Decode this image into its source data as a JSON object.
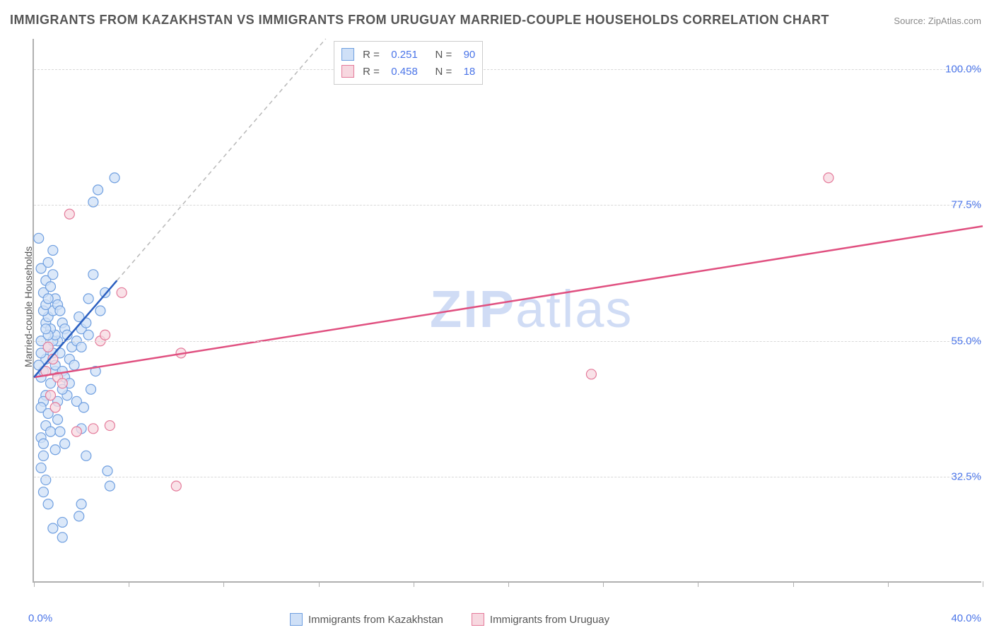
{
  "title": "IMMIGRANTS FROM KAZAKHSTAN VS IMMIGRANTS FROM URUGUAY MARRIED-COUPLE HOUSEHOLDS CORRELATION CHART",
  "source_label": "Source:",
  "source_name": "ZipAtlas.com",
  "watermark": "ZIPatlas",
  "chart": {
    "type": "scatter",
    "ylabel": "Married-couple Households",
    "xlim": [
      0,
      40
    ],
    "ylim": [
      15,
      105
    ],
    "x_ticks": [
      0,
      4,
      8,
      12,
      16,
      20,
      24,
      28,
      32,
      36,
      40
    ],
    "x_tick_labels": {
      "0": "0.0%",
      "40": "40.0%"
    },
    "y_grid": [
      32.5,
      55.0,
      77.5,
      100.0
    ],
    "y_grid_labels": [
      "32.5%",
      "55.0%",
      "77.5%",
      "100.0%"
    ],
    "background_color": "#ffffff",
    "grid_color": "#d8d8d8",
    "axis_color": "#b0b0b0",
    "tick_label_color": "#4a74e8",
    "series": [
      {
        "name": "Immigrants from Kazakhstan",
        "marker_fill": "#cfe0f7",
        "marker_stroke": "#6f9fe0",
        "marker_radius": 7,
        "line_color": "#2b5fc0",
        "dash_color": "#b8b8b8",
        "R": "0.251",
        "N": "90",
        "regression": {
          "x1": 0,
          "y1": 49,
          "x2": 3.5,
          "y2": 65
        },
        "dash_extend": {
          "x1": 3.5,
          "y1": 65,
          "x2": 12.3,
          "y2": 105
        },
        "points": [
          [
            0.3,
            49
          ],
          [
            0.4,
            50
          ],
          [
            0.5,
            52
          ],
          [
            0.3,
            55
          ],
          [
            0.6,
            54
          ],
          [
            0.8,
            53
          ],
          [
            0.9,
            50
          ],
          [
            0.7,
            48
          ],
          [
            0.5,
            46
          ],
          [
            0.4,
            45
          ],
          [
            0.3,
            44
          ],
          [
            0.6,
            43
          ],
          [
            0.5,
            41
          ],
          [
            0.7,
            40
          ],
          [
            0.3,
            39
          ],
          [
            0.4,
            38
          ],
          [
            0.5,
            58
          ],
          [
            0.6,
            59
          ],
          [
            0.8,
            60
          ],
          [
            0.9,
            62
          ],
          [
            1.0,
            61
          ],
          [
            1.1,
            60
          ],
          [
            1.2,
            58
          ],
          [
            1.3,
            57
          ],
          [
            1.0,
            55
          ],
          [
            1.1,
            53
          ],
          [
            0.9,
            51
          ],
          [
            1.2,
            50
          ],
          [
            1.3,
            49
          ],
          [
            1.5,
            52
          ],
          [
            1.6,
            54
          ],
          [
            1.4,
            56
          ],
          [
            0.4,
            63
          ],
          [
            0.5,
            65
          ],
          [
            0.3,
            67
          ],
          [
            0.6,
            68
          ],
          [
            0.8,
            70
          ],
          [
            0.2,
            72
          ],
          [
            0.4,
            36
          ],
          [
            0.3,
            34
          ],
          [
            0.5,
            32
          ],
          [
            0.4,
            30
          ],
          [
            0.6,
            28
          ],
          [
            1.8,
            55
          ],
          [
            2.0,
            57
          ],
          [
            1.9,
            59
          ],
          [
            2.2,
            58
          ],
          [
            2.3,
            56
          ],
          [
            2.0,
            54
          ],
          [
            1.7,
            51
          ],
          [
            1.5,
            48
          ],
          [
            1.4,
            46
          ],
          [
            1.8,
            45
          ],
          [
            2.1,
            44
          ],
          [
            2.4,
            47
          ],
          [
            2.6,
            50
          ],
          [
            2.3,
            62
          ],
          [
            2.8,
            60
          ],
          [
            3.0,
            63
          ],
          [
            2.5,
            66
          ],
          [
            1.2,
            47
          ],
          [
            1.0,
            45
          ],
          [
            2.7,
            80
          ],
          [
            3.4,
            82
          ],
          [
            2.5,
            78
          ],
          [
            0.8,
            55
          ],
          [
            0.9,
            56
          ],
          [
            0.7,
            57
          ],
          [
            0.6,
            56
          ],
          [
            0.5,
            57
          ],
          [
            2.0,
            40.5
          ],
          [
            3.2,
            31
          ],
          [
            3.1,
            33.5
          ],
          [
            2.2,
            36
          ],
          [
            2.0,
            28
          ],
          [
            1.9,
            26
          ],
          [
            1.2,
            25
          ],
          [
            1.2,
            22.5
          ],
          [
            0.8,
            24
          ],
          [
            0.9,
            37
          ],
          [
            0.4,
            60
          ],
          [
            0.5,
            61
          ],
          [
            0.6,
            62
          ],
          [
            0.7,
            64
          ],
          [
            0.8,
            66
          ],
          [
            0.3,
            53
          ],
          [
            0.2,
            51
          ],
          [
            1.0,
            42
          ],
          [
            1.1,
            40
          ],
          [
            1.3,
            38
          ]
        ]
      },
      {
        "name": "Immigrants from Uruguay",
        "marker_fill": "#f7d8e0",
        "marker_stroke": "#e47a9a",
        "marker_radius": 7,
        "line_color": "#e05080",
        "R": "0.458",
        "N": "18",
        "regression": {
          "x1": 0,
          "y1": 49,
          "x2": 40,
          "y2": 74
        },
        "points": [
          [
            0.5,
            50
          ],
          [
            0.8,
            52
          ],
          [
            1.0,
            49
          ],
          [
            1.2,
            48
          ],
          [
            0.7,
            46
          ],
          [
            0.9,
            44
          ],
          [
            2.8,
            55
          ],
          [
            3.0,
            56
          ],
          [
            3.7,
            63
          ],
          [
            1.5,
            76
          ],
          [
            1.8,
            40
          ],
          [
            2.5,
            40.5
          ],
          [
            3.2,
            41
          ],
          [
            6.2,
            53
          ],
          [
            6.0,
            31
          ],
          [
            23.5,
            49.5
          ],
          [
            33.5,
            82
          ],
          [
            0.6,
            54
          ]
        ]
      }
    ],
    "legend_top": {
      "rows": [
        {
          "swatch_fill": "#cfe0f7",
          "swatch_stroke": "#6f9fe0",
          "r_label": "R =",
          "r_val": "0.251",
          "n_label": "N =",
          "n_val": "90"
        },
        {
          "swatch_fill": "#f7d8e0",
          "swatch_stroke": "#e47a9a",
          "r_label": "R =",
          "r_val": "0.458",
          "n_label": "N =",
          "n_val": "18"
        }
      ]
    },
    "legend_bottom": [
      {
        "swatch_fill": "#cfe0f7",
        "swatch_stroke": "#6f9fe0",
        "label": "Immigrants from Kazakhstan"
      },
      {
        "swatch_fill": "#f7d8e0",
        "swatch_stroke": "#e47a9a",
        "label": "Immigrants from Uruguay"
      }
    ]
  }
}
